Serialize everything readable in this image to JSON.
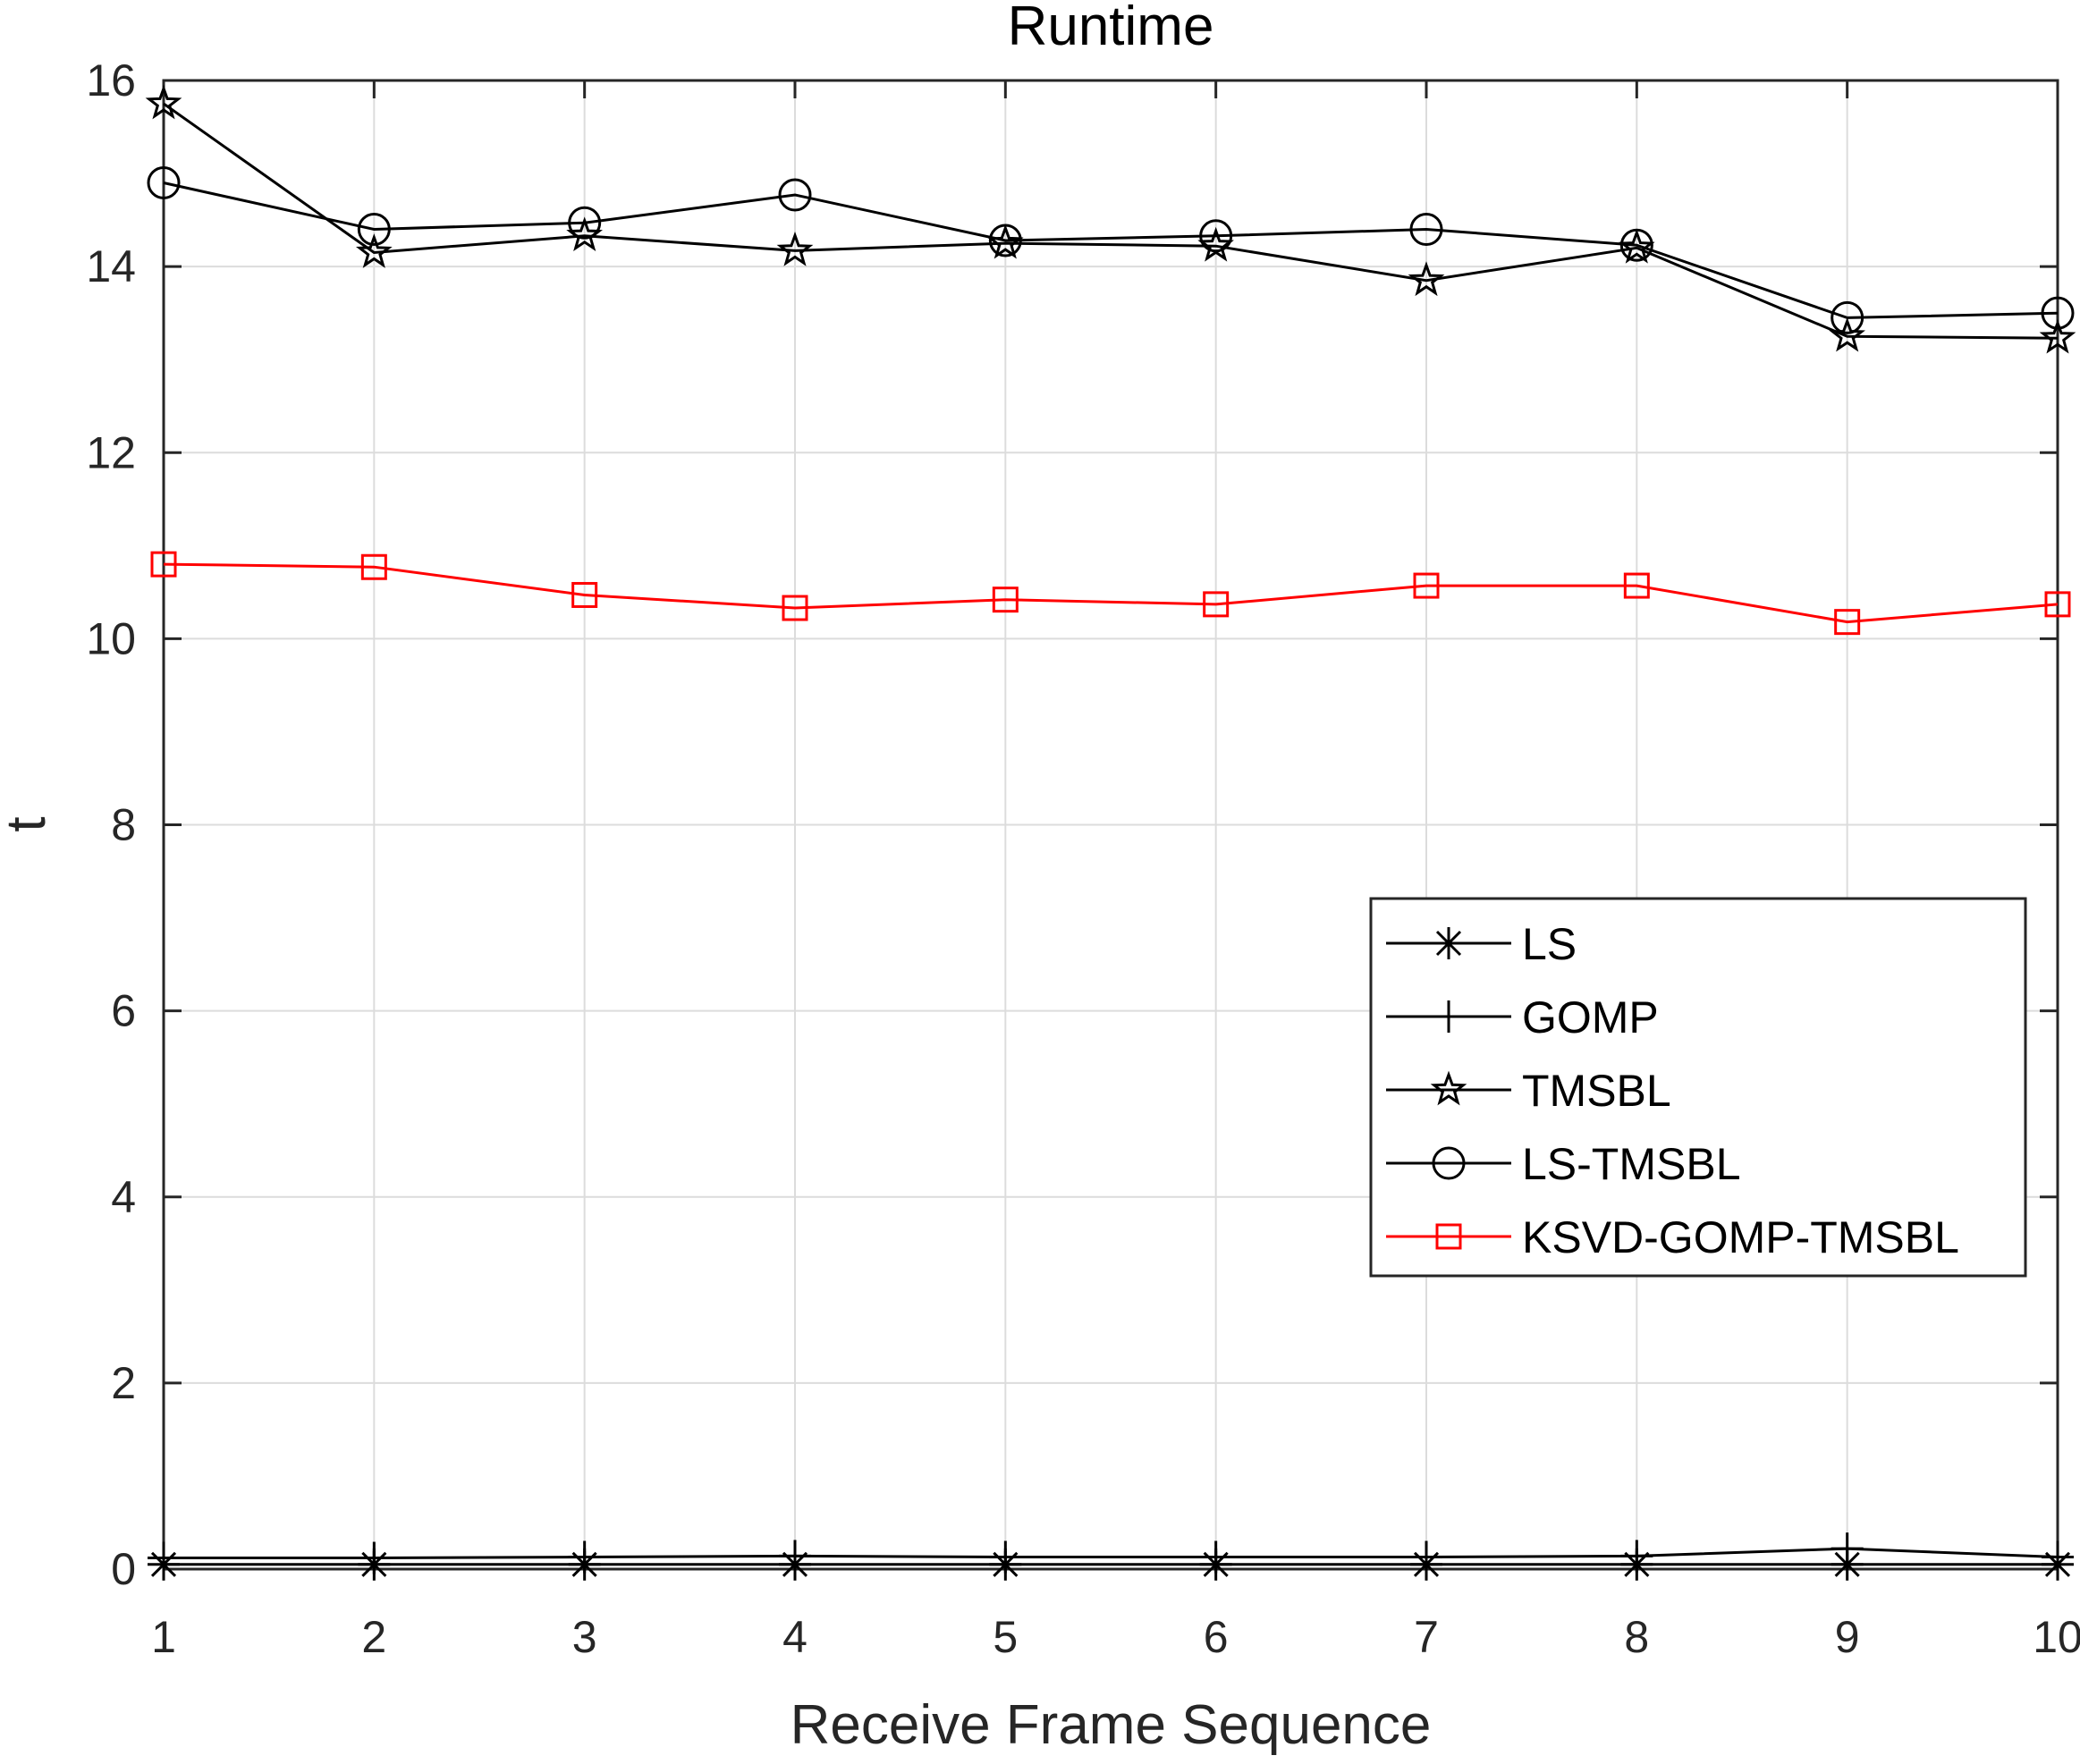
{
  "chart_data": {
    "type": "line",
    "title": "Runtime",
    "xlabel": "Receive Frame Sequence",
    "ylabel": "t",
    "x": [
      1,
      2,
      3,
      4,
      5,
      6,
      7,
      8,
      9,
      10
    ],
    "xlim": [
      1,
      10
    ],
    "ylim": [
      0,
      16
    ],
    "xticks": [
      "1",
      "2",
      "3",
      "4",
      "5",
      "6",
      "7",
      "8",
      "9",
      "10"
    ],
    "yticks": [
      "0",
      "2",
      "4",
      "6",
      "8",
      "10",
      "12",
      "14",
      "16"
    ],
    "grid": true,
    "legend_position": "right",
    "series": [
      {
        "name": "LS",
        "marker": "asterisk",
        "color": "#000000",
        "values": [
          0.05,
          0.05,
          0.05,
          0.05,
          0.05,
          0.05,
          0.05,
          0.05,
          0.05,
          0.05
        ]
      },
      {
        "name": "GOMP",
        "marker": "plus",
        "color": "#000000",
        "values": [
          0.12,
          0.12,
          0.13,
          0.14,
          0.13,
          0.13,
          0.13,
          0.14,
          0.22,
          0.13
        ]
      },
      {
        "name": "TMSBL",
        "marker": "pentagram",
        "color": "#000000",
        "values": [
          15.75,
          14.15,
          14.33,
          14.17,
          14.25,
          14.22,
          13.85,
          14.2,
          13.25,
          13.23
        ]
      },
      {
        "name": "LS-TMSBL",
        "marker": "circle",
        "color": "#000000",
        "values": [
          14.9,
          14.4,
          14.47,
          14.77,
          14.28,
          14.33,
          14.4,
          14.23,
          13.45,
          13.5
        ]
      },
      {
        "name": "KSVD-GOMP-TMSBL",
        "marker": "square",
        "color": "#ff0000",
        "values": [
          10.8,
          10.77,
          10.47,
          10.33,
          10.42,
          10.37,
          10.57,
          10.57,
          10.18,
          10.37
        ]
      }
    ]
  }
}
